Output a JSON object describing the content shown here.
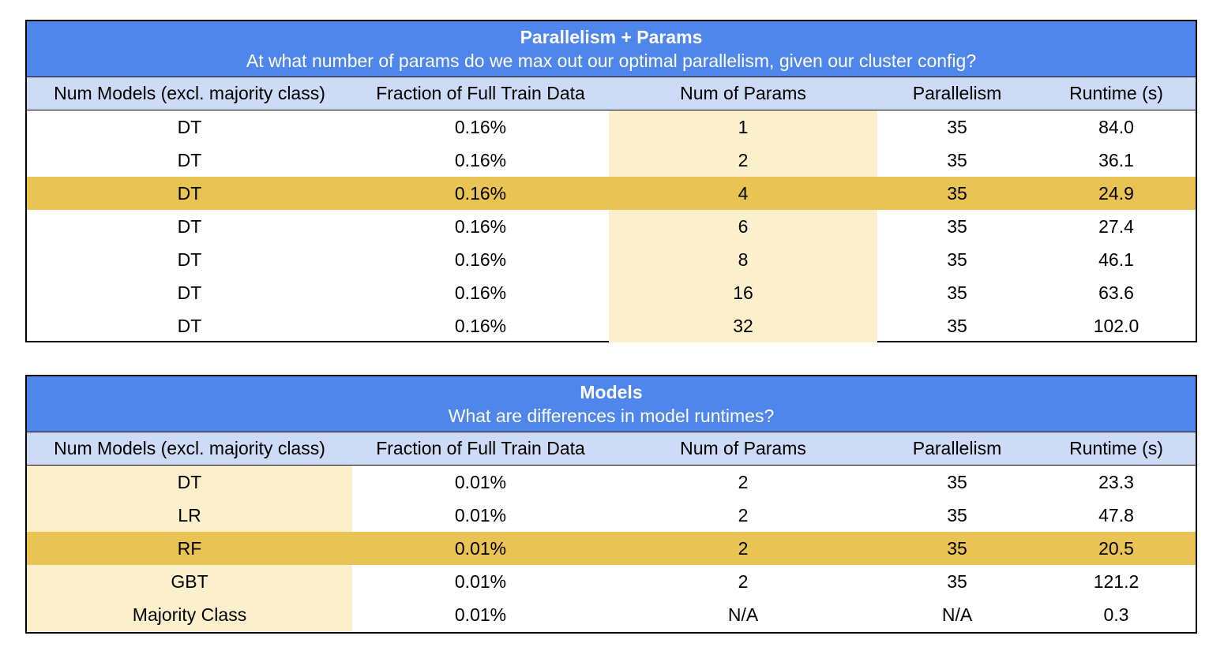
{
  "tables": [
    {
      "title": "Parallelism + Params",
      "subtitle": "At what number of params do we max out our optimal parallelism, given our cluster config?",
      "headers": [
        "Num Models (excl. majority class)",
        "Fraction of Full Train Data",
        "Num of Params",
        "Parallelism",
        "Runtime (s)"
      ],
      "highlight_column": 2,
      "highlight_row": 2,
      "rows": [
        [
          "DT",
          "0.16%",
          "1",
          "35",
          "84.0"
        ],
        [
          "DT",
          "0.16%",
          "2",
          "35",
          "36.1"
        ],
        [
          "DT",
          "0.16%",
          "4",
          "35",
          "24.9"
        ],
        [
          "DT",
          "0.16%",
          "6",
          "35",
          "27.4"
        ],
        [
          "DT",
          "0.16%",
          "8",
          "35",
          "46.1"
        ],
        [
          "DT",
          "0.16%",
          "16",
          "35",
          "63.6"
        ],
        [
          "DT",
          "0.16%",
          "32",
          "35",
          "102.0"
        ]
      ]
    },
    {
      "title": "Models",
      "subtitle": "What are differences in model runtimes?",
      "headers": [
        "Num Models (excl. majority class)",
        "Fraction of Full Train Data",
        "Num of Params",
        "Parallelism",
        "Runtime (s)"
      ],
      "highlight_column": 0,
      "highlight_row": 2,
      "rows": [
        [
          "DT",
          "0.01%",
          "2",
          "35",
          "23.3"
        ],
        [
          "LR",
          "0.01%",
          "2",
          "35",
          "47.8"
        ],
        [
          "RF",
          "0.01%",
          "2",
          "35",
          "20.5"
        ],
        [
          "GBT",
          "0.01%",
          "2",
          "35",
          "121.2"
        ],
        [
          "Majority Class",
          "0.01%",
          "N/A",
          "N/A",
          "0.3"
        ]
      ]
    }
  ],
  "colors": {
    "banner": "#4f86ec",
    "header_row": "#cddbf6",
    "highlight_light": "#fcf0cc",
    "highlight_strong": "#e9c353"
  }
}
